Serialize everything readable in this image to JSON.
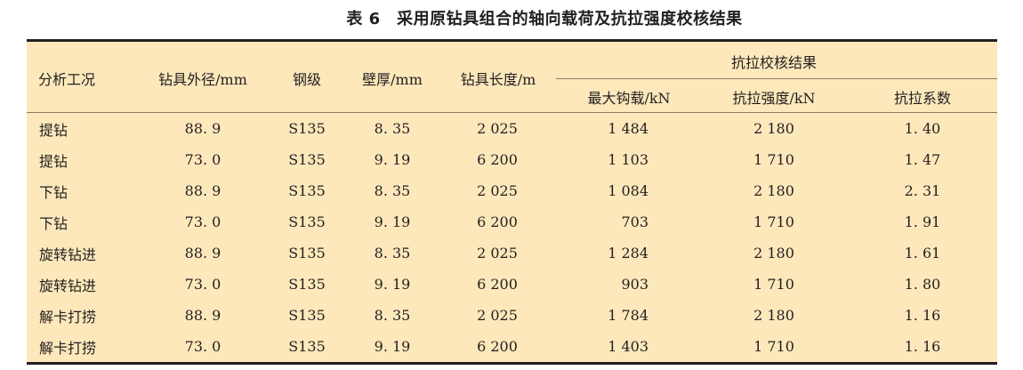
{
  "title": "表 6　采用原钻具组合的轴向载荷及抗拉强度校核结果",
  "headers": {
    "condition": "分析工况",
    "od": "钻具外径/mm",
    "grade": "钢级",
    "wall": "壁厚/mm",
    "length": "钻具长度/m",
    "group": "抗拉校核结果",
    "hookload": "最大钩载/kN",
    "strength": "抗拉强度/kN",
    "factor": "抗拉系数"
  },
  "rows": [
    [
      "提钻",
      "88. 9",
      "S135",
      "8. 35",
      "2 025",
      "1 484",
      "2 180",
      "1. 40"
    ],
    [
      "提钻",
      "73. 0",
      "S135",
      "9. 19",
      "6 200",
      "1 103",
      "1 710",
      "1. 47"
    ],
    [
      "下钻",
      "88. 9",
      "S135",
      "8. 35",
      "2 025",
      "1 084",
      "2 180",
      "2. 31"
    ],
    [
      "下钻",
      "73. 0",
      "S135",
      "9. 19",
      "6 200",
      "703",
      "1 710",
      "1. 91"
    ],
    [
      "旋转钻进",
      "88. 9",
      "S135",
      "8. 35",
      "2 025",
      "1 284",
      "2 180",
      "1. 61"
    ],
    [
      "旋转钻进",
      "73. 0",
      "S135",
      "9. 19",
      "6 200",
      "903",
      "1 710",
      "1. 80"
    ],
    [
      "解卡打捞",
      "88. 9",
      "S135",
      "8. 35",
      "2 025",
      "1 784",
      "2 180",
      "1. 16"
    ],
    [
      "解卡打捞",
      "73. 0",
      "S135",
      "9. 19",
      "6 200",
      "1 403",
      "1 710",
      "1. 16"
    ]
  ]
}
